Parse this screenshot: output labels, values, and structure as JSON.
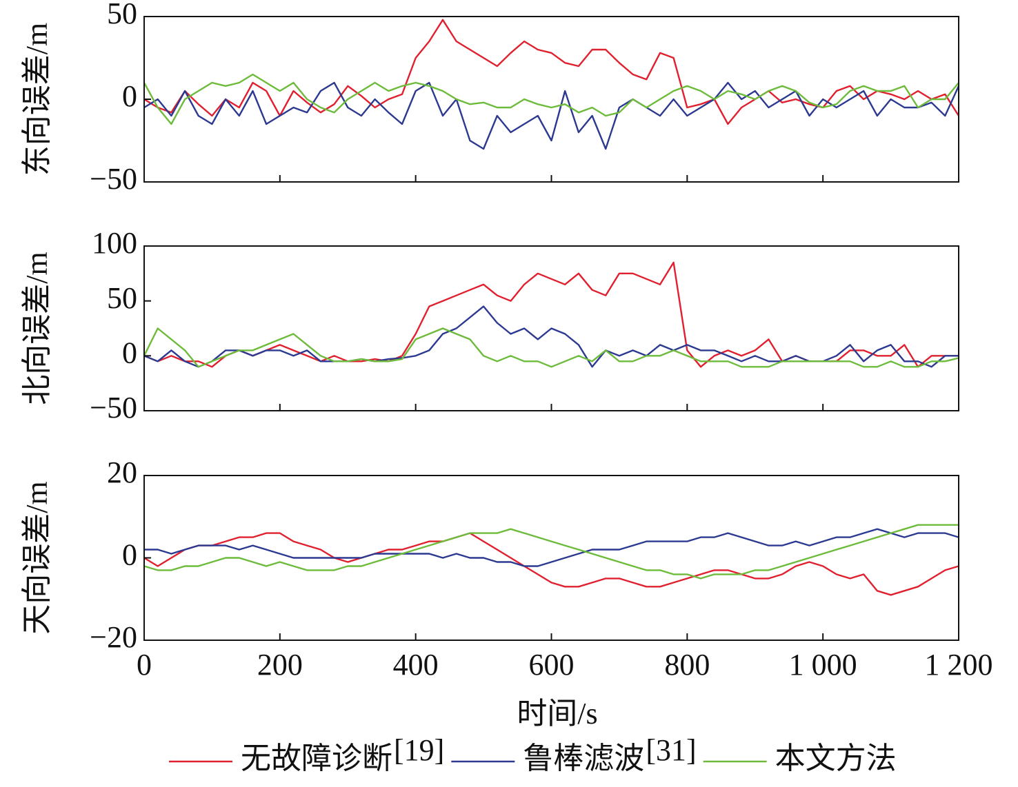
{
  "chart_data": {
    "type": "line",
    "xlabel": "时间/s",
    "xlim": [
      0,
      1200
    ],
    "xticks": [
      0,
      200,
      400,
      600,
      800,
      {
        "value": 1000,
        "label": "1 000"
      },
      {
        "value": 1200,
        "label": "1 200"
      }
    ],
    "x": [
      0,
      20,
      40,
      60,
      80,
      100,
      120,
      140,
      160,
      180,
      200,
      220,
      240,
      260,
      280,
      300,
      320,
      340,
      360,
      380,
      400,
      420,
      440,
      460,
      480,
      500,
      520,
      540,
      560,
      580,
      600,
      620,
      640,
      660,
      680,
      700,
      720,
      740,
      760,
      780,
      800,
      820,
      840,
      860,
      880,
      900,
      920,
      940,
      960,
      980,
      1000,
      1020,
      1040,
      1060,
      1080,
      1100,
      1120,
      1140,
      1160,
      1180,
      1200
    ],
    "legend": [
      {
        "name": "无故障诊断",
        "superscript": "[19]",
        "color": "#e0202e"
      },
      {
        "name": "鲁棒滤波",
        "superscript": "[31]",
        "color": "#2b3990"
      },
      {
        "name": "本文方法",
        "color": "#6dbb3a"
      }
    ],
    "panels": [
      {
        "ylabel": "东向误差/m",
        "ylim": [
          -50,
          50
        ],
        "yticks": [
          {
            "value": -50,
            "label": "−50"
          },
          0,
          50
        ],
        "series": [
          {
            "values": [
              0,
              -5,
              -8,
              5,
              -3,
              -10,
              0,
              -5,
              10,
              5,
              -10,
              5,
              -2,
              -8,
              -3,
              8,
              2,
              -5,
              0,
              3,
              25,
              35,
              48,
              35,
              30,
              25,
              20,
              28,
              35,
              30,
              28,
              22,
              20,
              30,
              30,
              22,
              15,
              12,
              28,
              25,
              -5,
              -3,
              0,
              -15,
              -5,
              0,
              5,
              -2,
              0,
              -3,
              -5,
              5,
              8,
              0,
              5,
              3,
              0,
              5,
              0,
              3,
              -10
            ]
          },
          {
            "values": [
              -5,
              0,
              -10,
              5,
              -10,
              -15,
              0,
              -10,
              5,
              -15,
              -10,
              -5,
              -8,
              5,
              10,
              -5,
              -10,
              0,
              -8,
              -15,
              5,
              10,
              -10,
              0,
              -25,
              -30,
              -10,
              -20,
              -15,
              -10,
              -25,
              5,
              -20,
              -10,
              -30,
              -5,
              0,
              -5,
              -10,
              0,
              -10,
              -5,
              0,
              10,
              0,
              5,
              -5,
              0,
              5,
              -10,
              0,
              -5,
              0,
              5,
              -10,
              0,
              -5,
              -5,
              -2,
              -10,
              8
            ]
          },
          {
            "values": [
              10,
              -5,
              -15,
              0,
              5,
              10,
              8,
              10,
              15,
              10,
              5,
              10,
              0,
              -5,
              -8,
              0,
              5,
              10,
              5,
              8,
              10,
              8,
              5,
              0,
              -3,
              -2,
              -5,
              -5,
              0,
              -3,
              -5,
              -3,
              -8,
              -5,
              -10,
              -8,
              0,
              -5,
              0,
              5,
              8,
              5,
              0,
              5,
              3,
              0,
              5,
              8,
              5,
              -2,
              -5,
              -3,
              5,
              8,
              5,
              5,
              8,
              -5,
              0,
              0,
              10
            ]
          }
        ]
      },
      {
        "ylabel": "北向误差/m",
        "ylim": [
          -50,
          100
        ],
        "yticks": [
          {
            "value": -50,
            "label": "−50"
          },
          0,
          50,
          100
        ],
        "series": [
          {
            "values": [
              0,
              -5,
              0,
              -5,
              -5,
              -10,
              0,
              5,
              0,
              5,
              10,
              5,
              0,
              -5,
              0,
              -5,
              -5,
              -3,
              -5,
              0,
              20,
              45,
              50,
              55,
              60,
              65,
              55,
              50,
              65,
              75,
              70,
              65,
              75,
              60,
              55,
              75,
              75,
              70,
              65,
              85,
              5,
              -10,
              0,
              5,
              0,
              5,
              15,
              -5,
              0,
              -5,
              -5,
              -5,
              5,
              5,
              0,
              0,
              10,
              -10,
              0,
              0,
              0
            ]
          },
          {
            "values": [
              0,
              -5,
              5,
              -5,
              -10,
              -5,
              5,
              5,
              0,
              5,
              5,
              0,
              5,
              -5,
              -5,
              -5,
              -3,
              -5,
              -3,
              -2,
              0,
              5,
              20,
              25,
              35,
              45,
              30,
              20,
              25,
              15,
              25,
              20,
              10,
              -10,
              5,
              0,
              5,
              0,
              10,
              5,
              10,
              5,
              5,
              0,
              -5,
              0,
              -5,
              -5,
              0,
              -5,
              -5,
              0,
              10,
              -5,
              5,
              10,
              -5,
              -5,
              -10,
              0,
              0
            ]
          },
          {
            "values": [
              0,
              25,
              15,
              5,
              -10,
              -5,
              0,
              5,
              5,
              10,
              15,
              20,
              10,
              0,
              -5,
              -5,
              -3,
              -5,
              -5,
              -3,
              15,
              20,
              25,
              20,
              15,
              0,
              -5,
              0,
              -5,
              -5,
              -10,
              -5,
              0,
              -5,
              5,
              -5,
              -5,
              0,
              0,
              5,
              0,
              -5,
              -5,
              -5,
              -10,
              -10,
              -10,
              -5,
              -5,
              -5,
              -5,
              -5,
              -5,
              -10,
              -10,
              -5,
              -10,
              -10,
              -5,
              -5,
              -2
            ]
          }
        ]
      },
      {
        "ylabel": "天向误差/m",
        "ylim": [
          -20,
          20
        ],
        "yticks": [
          {
            "value": -20,
            "label": "−20"
          },
          0,
          20
        ],
        "series": [
          {
            "values": [
              0,
              -2,
              0,
              2,
              3,
              3,
              4,
              5,
              5,
              6,
              6,
              4,
              3,
              2,
              0,
              -1,
              0,
              1,
              2,
              2,
              3,
              4,
              4,
              5,
              6,
              4,
              2,
              0,
              -2,
              -4,
              -6,
              -7,
              -7,
              -6,
              -5,
              -5,
              -6,
              -7,
              -7,
              -6,
              -5,
              -4,
              -3,
              -3,
              -4,
              -5,
              -5,
              -4,
              -2,
              -1,
              -2,
              -4,
              -5,
              -4,
              -8,
              -9,
              -8,
              -7,
              -5,
              -3,
              -2
            ]
          },
          {
            "values": [
              2,
              2,
              1,
              2,
              3,
              3,
              3,
              2,
              3,
              2,
              1,
              0,
              0,
              0,
              0,
              0,
              0,
              1,
              1,
              1,
              1,
              1,
              0,
              1,
              0,
              0,
              -1,
              -1,
              -2,
              -2,
              -1,
              0,
              1,
              2,
              2,
              2,
              3,
              4,
              4,
              4,
              4,
              5,
              5,
              6,
              5,
              4,
              3,
              3,
              4,
              3,
              4,
              5,
              5,
              6,
              7,
              6,
              5,
              6,
              6,
              6,
              5
            ]
          },
          {
            "values": [
              -2,
              -3,
              -3,
              -2,
              -2,
              -1,
              0,
              0,
              -1,
              -2,
              -1,
              -2,
              -3,
              -3,
              -3,
              -2,
              -2,
              -1,
              0,
              1,
              2,
              3,
              4,
              5,
              6,
              6,
              6,
              7,
              6,
              5,
              4,
              3,
              2,
              1,
              0,
              -1,
              -2,
              -3,
              -3,
              -4,
              -4,
              -5,
              -4,
              -4,
              -4,
              -3,
              -3,
              -2,
              -1,
              0,
              1,
              2,
              3,
              4,
              5,
              6,
              7,
              8,
              8,
              8,
              8
            ]
          }
        ]
      }
    ]
  }
}
